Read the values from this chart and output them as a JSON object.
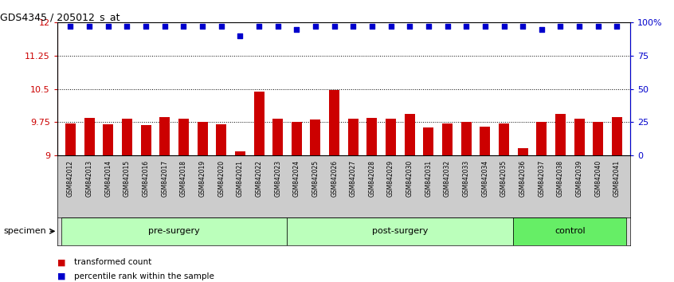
{
  "title": "GDS4345 / 205012_s_at",
  "samples": [
    "GSM842012",
    "GSM842013",
    "GSM842014",
    "GSM842015",
    "GSM842016",
    "GSM842017",
    "GSM842018",
    "GSM842019",
    "GSM842020",
    "GSM842021",
    "GSM842022",
    "GSM842023",
    "GSM842024",
    "GSM842025",
    "GSM842026",
    "GSM842027",
    "GSM842028",
    "GSM842029",
    "GSM842030",
    "GSM842031",
    "GSM842032",
    "GSM842033",
    "GSM842034",
    "GSM842035",
    "GSM842036",
    "GSM842037",
    "GSM842038",
    "GSM842039",
    "GSM842040",
    "GSM842041"
  ],
  "bar_values": [
    9.71,
    9.85,
    9.7,
    9.82,
    9.68,
    9.86,
    9.82,
    9.75,
    9.7,
    9.09,
    10.44,
    9.83,
    9.75,
    9.8,
    10.47,
    9.82,
    9.85,
    9.82,
    9.93,
    9.62,
    9.72,
    9.75,
    9.65,
    9.71,
    9.15,
    9.75,
    9.93,
    9.83,
    9.75,
    9.86
  ],
  "percentile_values": [
    97,
    97,
    97,
    97,
    97,
    97,
    97,
    97,
    97,
    90,
    97,
    97,
    95,
    97,
    97,
    97,
    97,
    97,
    97,
    97,
    97,
    97,
    97,
    97,
    97,
    95,
    97,
    97,
    97,
    97
  ],
  "bar_color": "#cc0000",
  "percentile_color": "#0000cc",
  "group_boundaries": [
    0,
    12,
    24,
    30
  ],
  "group_labels": [
    "pre-surgery",
    "post-surgery",
    "control"
  ],
  "group_colors": [
    "#bbffbb",
    "#bbffbb",
    "#66ee66"
  ],
  "ylim_left": [
    9.0,
    12.0
  ],
  "ylim_right": [
    0,
    100
  ],
  "yticks_left": [
    9.0,
    9.75,
    10.5,
    11.25,
    12.0
  ],
  "yticks_right": [
    0,
    25,
    50,
    75,
    100
  ],
  "ytick_labels_left": [
    "9",
    "9.75",
    "10.5",
    "11.25",
    "12"
  ],
  "ytick_labels_right": [
    "0",
    "25",
    "50",
    "75",
    "100%"
  ],
  "hlines": [
    9.75,
    10.5,
    11.25
  ],
  "specimen_label": "specimen",
  "legend_items": [
    {
      "label": "transformed count",
      "color": "#cc0000"
    },
    {
      "label": "percentile rank within the sample",
      "color": "#0000cc"
    }
  ],
  "bg_color": "#ffffff",
  "plot_bg_color": "#ffffff",
  "tick_area_color": "#cccccc"
}
